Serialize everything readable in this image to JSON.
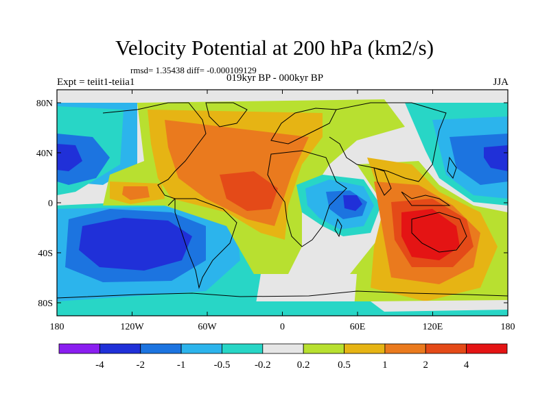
{
  "title": "Velocity Potential at 200 hPa (km2/s)",
  "stats": "rmsd= 1.35438 diff= -0.000109129",
  "experiment": "Expt = teiit1-teiia1",
  "period": "019kyr BP - 000kyr BP",
  "season": "JJA",
  "axes": {
    "lat_labels": [
      "80N",
      "40N",
      "0",
      "40S",
      "80S"
    ],
    "lon_labels": [
      "180",
      "120W",
      "60W",
      "0",
      "60E",
      "120E",
      "180"
    ]
  },
  "colorbar": {
    "labels": [
      "-4",
      "-2",
      "-1",
      "-0.5",
      "-0.2",
      "0.2",
      "0.5",
      "1",
      "2",
      "4"
    ],
    "colors": [
      "#8a1ef0",
      "#2030d8",
      "#1c74e0",
      "#2cb4ec",
      "#28d6c6",
      "#e6e6e6",
      "#b8e030",
      "#e6b414",
      "#ea7a1e",
      "#e44a18",
      "#e41414"
    ]
  },
  "colors": {
    "neutral": "#e6e6e6",
    "coast": "#000000"
  }
}
